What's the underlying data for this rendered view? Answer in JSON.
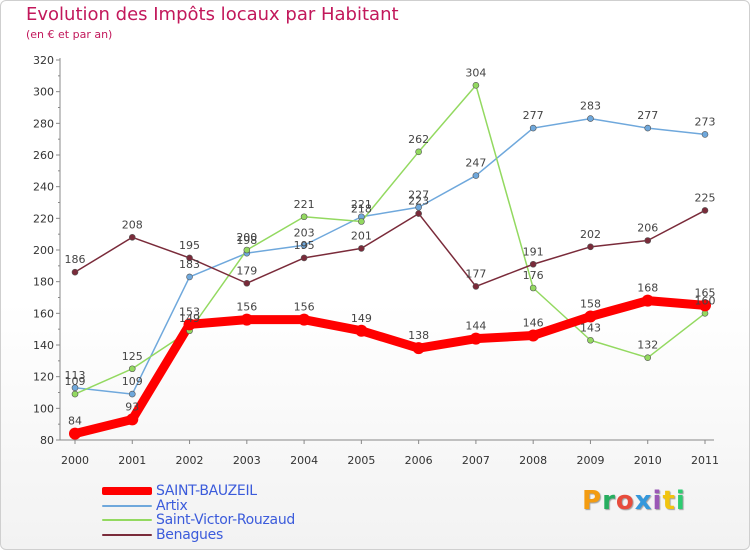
{
  "title": "Evolution des Impôts locaux par Habitant",
  "subtitle": "(en € et par an)",
  "logo": {
    "text": "Proxiti",
    "colors": [
      "#f39c12",
      "#27ae60",
      "#e74c3c",
      "#3498db",
      "#9b59b6",
      "#f1c40f",
      "#2ecc71"
    ]
  },
  "chart_data": {
    "type": "line",
    "title": "Evolution des Impôts locaux par Habitant",
    "subtitle": "(en € et par an)",
    "xlabel": "",
    "ylabel": "",
    "categories": [
      "2000",
      "2001",
      "2002",
      "2003",
      "2004",
      "2005",
      "2006",
      "2007",
      "2008",
      "2009",
      "2010",
      "2011"
    ],
    "ylim": [
      80,
      320
    ],
    "yticks": [
      80,
      100,
      120,
      140,
      160,
      180,
      200,
      220,
      240,
      260,
      280,
      300,
      320
    ],
    "grid": false,
    "legend_position": "bottom-left",
    "series": [
      {
        "name": "SAINT-BAUZEIL",
        "color": "#ff0000",
        "values": [
          84,
          93,
          153,
          156,
          156,
          149,
          138,
          144,
          146,
          158,
          168,
          165
        ]
      },
      {
        "name": "Artix",
        "color": "#6fa8dc",
        "values": [
          113,
          109,
          183,
          198,
          203,
          221,
          227,
          247,
          277,
          283,
          277,
          273
        ]
      },
      {
        "name": "Saint-Victor-Rouzaud",
        "color": "#93d960",
        "values": [
          109,
          125,
          149,
          200,
          221,
          218,
          262,
          304,
          176,
          143,
          132,
          160
        ]
      },
      {
        "name": "Benagues",
        "color": "#7a2b3a",
        "values": [
          186,
          208,
          195,
          179,
          195,
          201,
          223,
          177,
          191,
          202,
          206,
          225
        ]
      }
    ]
  }
}
